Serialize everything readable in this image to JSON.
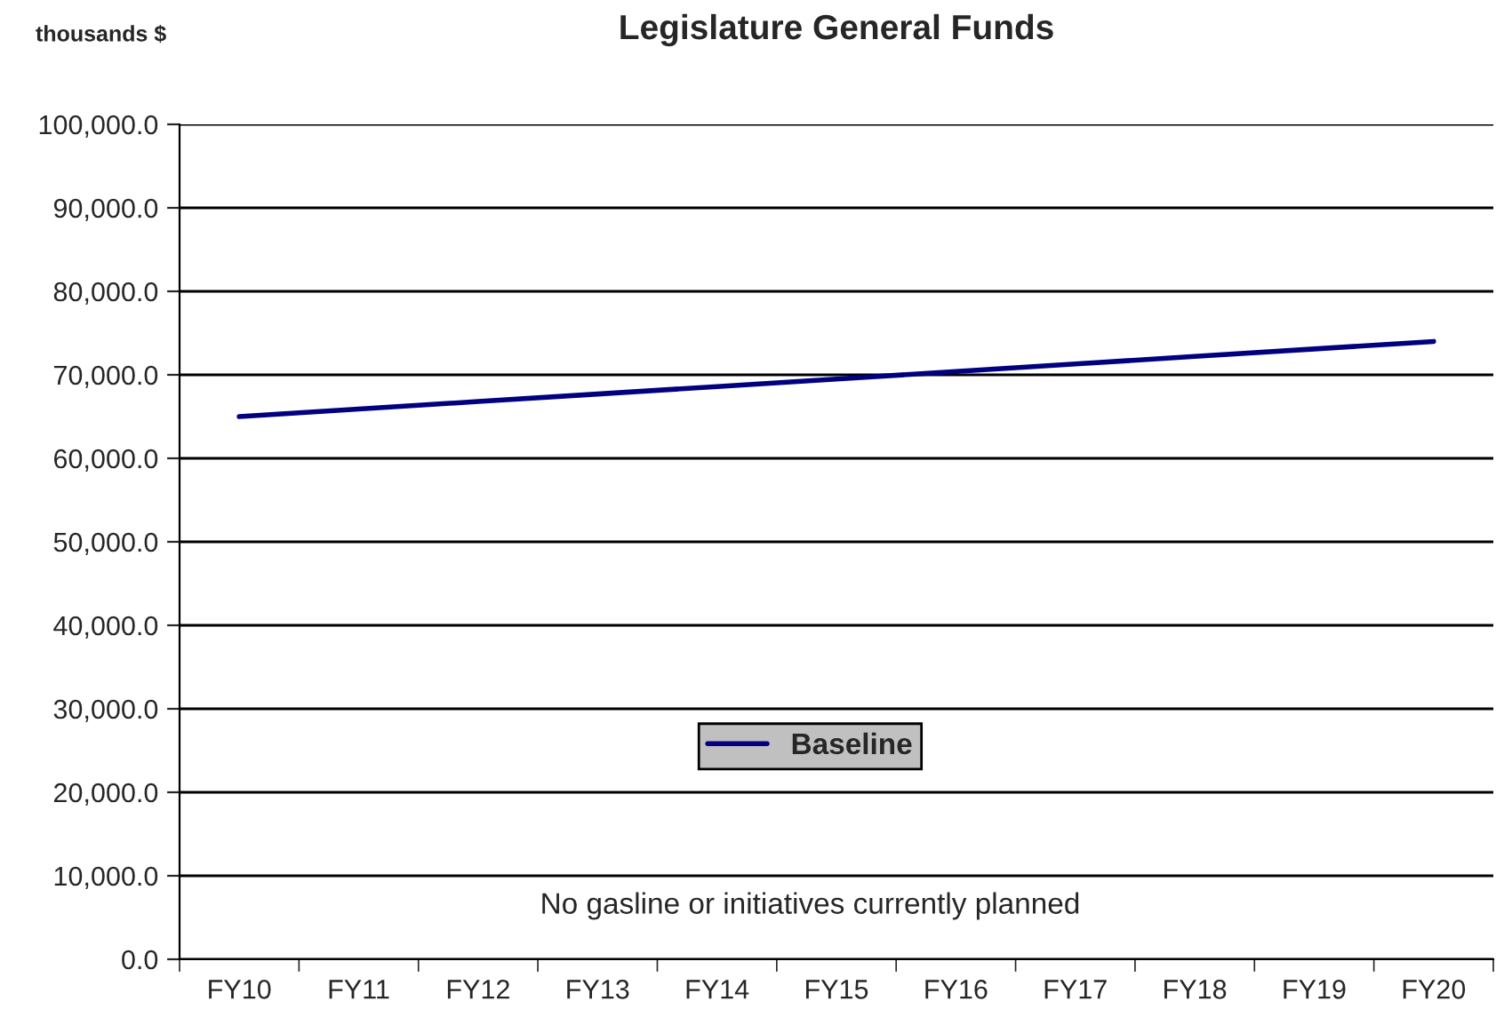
{
  "chart_data": {
    "type": "line",
    "title": "Legislature General Funds",
    "ylabel": "thousands $",
    "categories": [
      "FY10",
      "FY11",
      "FY12",
      "FY13",
      "FY14",
      "FY15",
      "FY16",
      "FY17",
      "FY18",
      "FY19",
      "FY20"
    ],
    "series": [
      {
        "name": "Baseline",
        "color": "#000080",
        "values": [
          65000,
          65900,
          66800,
          67700,
          68600,
          69500,
          70400,
          71300,
          72200,
          73100,
          74000
        ]
      }
    ],
    "ylim": [
      0,
      100000
    ],
    "yticks": [
      {
        "value": 0,
        "label": "0.0"
      },
      {
        "value": 10000,
        "label": "10,000.0"
      },
      {
        "value": 20000,
        "label": "20,000.0"
      },
      {
        "value": 30000,
        "label": "30,000.0"
      },
      {
        "value": 40000,
        "label": "40,000.0"
      },
      {
        "value": 50000,
        "label": "50,000.0"
      },
      {
        "value": 60000,
        "label": "60,000.0"
      },
      {
        "value": 70000,
        "label": "70,000.0"
      },
      {
        "value": 80000,
        "label": "80,000.0"
      },
      {
        "value": 90000,
        "label": "90,000.0"
      },
      {
        "value": 100000,
        "label": "100,000.0"
      }
    ],
    "grid": "y",
    "legend": "bottom",
    "marker": "none",
    "line_style": "solid",
    "annotations": [
      "No gasline or initiatives currently planned"
    ]
  }
}
